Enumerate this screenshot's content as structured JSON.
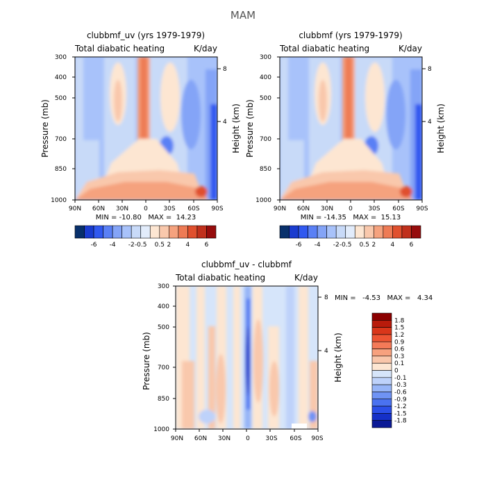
{
  "page": {
    "season_title": "MAM"
  },
  "chart_data": [
    {
      "type": "heatmap",
      "title": "clubbmf_uv (yrs 1979-1979)",
      "subtitle_left": "Total diabatic heating",
      "subtitle_right": "K/day",
      "ylabel": "Pressure (mb)",
      "ylabel_right": "Height (km)",
      "x_ticks": [
        "90N",
        "60N",
        "30N",
        "0",
        "30S",
        "60S",
        "90S"
      ],
      "y_ticks": [
        "300",
        "400",
        "500",
        "700",
        "850",
        "1000"
      ],
      "y_right_ticks": [
        "8",
        "4"
      ],
      "stats": "MIN = -10.80   MAX =  14.23",
      "ylim": [
        1000,
        300
      ]
    },
    {
      "type": "heatmap",
      "title": "clubbmf (yrs 1979-1979)",
      "subtitle_left": "Total diabatic heating",
      "subtitle_right": "K/day",
      "ylabel": "Pressure (mb)",
      "ylabel_right": "Height (km)",
      "x_ticks": [
        "90N",
        "60N",
        "30N",
        "0",
        "30S",
        "60S",
        "90S"
      ],
      "y_ticks": [
        "300",
        "400",
        "500",
        "700",
        "850",
        "1000"
      ],
      "y_right_ticks": [
        "8",
        "4"
      ],
      "stats": "MIN = -14.35   MAX =  15.13",
      "ylim": [
        1000,
        300
      ]
    },
    {
      "type": "heatmap",
      "title": "clubbmf_uv - clubbmf",
      "subtitle_left": "Total diabatic heating",
      "subtitle_right": "K/day",
      "ylabel": "Pressure (mb)",
      "ylabel_right": "Height (km)",
      "x_ticks": [
        "90N",
        "60N",
        "30N",
        "0",
        "30S",
        "60S",
        "90S"
      ],
      "y_ticks": [
        "300",
        "400",
        "500",
        "700",
        "850",
        "1000"
      ],
      "y_right_ticks": [
        "8",
        "4"
      ],
      "stats": "MIN =   -4.53   MAX =   4.34",
      "ylim": [
        1000,
        300
      ]
    }
  ],
  "colorbar_top": {
    "labels": [
      "-6",
      "-4",
      "-2",
      "-0.5",
      "0.5",
      "2",
      "4",
      "6"
    ],
    "colors": [
      "#08306b",
      "#1a3ccf",
      "#3159f0",
      "#5a80f5",
      "#84a4f7",
      "#a8c2fa",
      "#c8daf8",
      "#e2ecfb",
      "#fde6d2",
      "#f9c8ac",
      "#f5a27e",
      "#ee7b55",
      "#e0502e",
      "#c0301c",
      "#960c0c"
    ]
  },
  "colorbar_diff": {
    "labels": [
      "1.8",
      "1.5",
      "1.2",
      "0.9",
      "0.6",
      "0.3",
      "0.1",
      "0",
      "-0.1",
      "-0.3",
      "-0.6",
      "-0.9",
      "-1.2",
      "-1.5",
      "-1.8"
    ],
    "colors": [
      "#8b0000",
      "#b81b0b",
      "#d9361a",
      "#ed5433",
      "#f47a58",
      "#f7a17e",
      "#f9c6aa",
      "#fde6d2",
      "#d6e5fa",
      "#bed2fa",
      "#97b5f7",
      "#6f93f4",
      "#4a72f0",
      "#2b4fe8",
      "#1530c8",
      "#0b1a96"
    ]
  }
}
